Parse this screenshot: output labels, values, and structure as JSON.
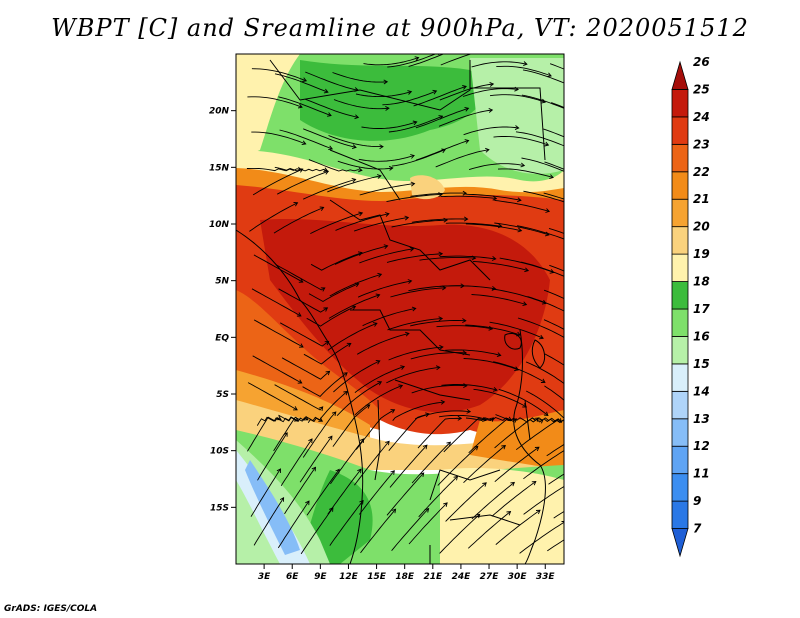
{
  "title": "WBPT [C] and Sreamline at 900hPa, VT: 2020051512",
  "credit": "GrADS: IGES/COLA",
  "map": {
    "lon_range": [
      0,
      35
    ],
    "lat_range": [
      -20,
      25
    ],
    "lon_ticks": [
      {
        "value": 3,
        "label": "3E"
      },
      {
        "value": 6,
        "label": "6E"
      },
      {
        "value": 9,
        "label": "9E"
      },
      {
        "value": 12,
        "label": "12E"
      },
      {
        "value": 15,
        "label": "15E"
      },
      {
        "value": 18,
        "label": "18E"
      },
      {
        "value": 21,
        "label": "21E"
      },
      {
        "value": 24,
        "label": "24E"
      },
      {
        "value": 27,
        "label": "27E"
      },
      {
        "value": 30,
        "label": "30E"
      },
      {
        "value": 33,
        "label": "33E"
      }
    ],
    "lat_ticks": [
      {
        "value": 20,
        "label": "20N"
      },
      {
        "value": 15,
        "label": "15N"
      },
      {
        "value": 10,
        "label": "10N"
      },
      {
        "value": 5,
        "label": "5N"
      },
      {
        "value": 0,
        "label": "EQ"
      },
      {
        "value": -5,
        "label": "5S"
      },
      {
        "value": -10,
        "label": "10S"
      },
      {
        "value": -15,
        "label": "15S"
      }
    ]
  },
  "colorbar": {
    "bins": [
      {
        "label": "7",
        "color": "#1f5fd6"
      },
      {
        "label": "9",
        "color": "#2a78e6"
      },
      {
        "label": "11",
        "color": "#3c8ef0"
      },
      {
        "label": "12",
        "color": "#5fa4f4"
      },
      {
        "label": "13",
        "color": "#86bdf7"
      },
      {
        "label": "14",
        "color": "#afd4f9"
      },
      {
        "label": "15",
        "color": "#d9effb"
      },
      {
        "label": "16",
        "color": "#b6f0a8"
      },
      {
        "label": "17",
        "color": "#7ee06a"
      },
      {
        "label": "18",
        "color": "#3cbc3c"
      },
      {
        "label": "19",
        "color": "#fff2ad"
      },
      {
        "label": "20",
        "color": "#fad27d"
      },
      {
        "label": "21",
        "color": "#f6a331"
      },
      {
        "label": "22",
        "color": "#f28b18"
      },
      {
        "label": "23",
        "color": "#ec6416"
      },
      {
        "label": "24",
        "color": "#e03b12"
      },
      {
        "label": "25",
        "color": "#c41a0c"
      },
      {
        "label": "26",
        "color": "#a50e0a"
      }
    ]
  }
}
